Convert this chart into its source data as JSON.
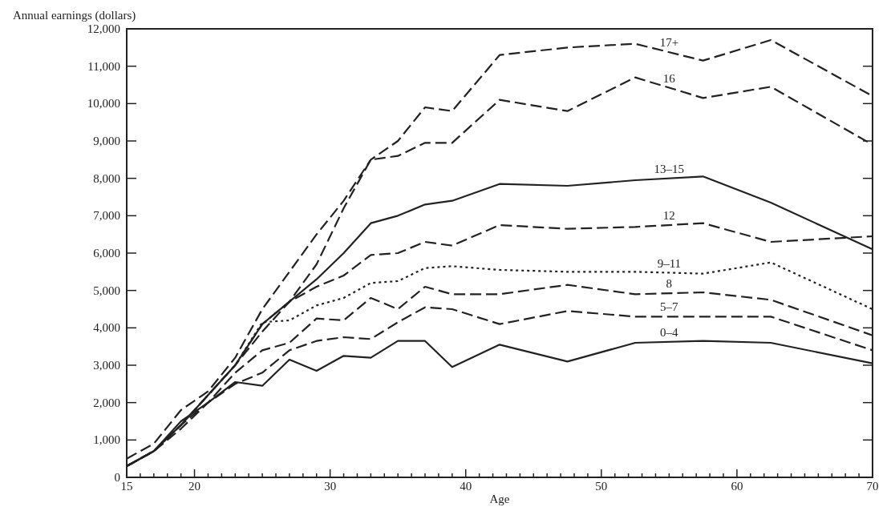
{
  "chart_data": {
    "type": "line",
    "ylabel": "Annual earnings (dollars)",
    "xlabel": "Age",
    "x": [
      15,
      17,
      19,
      21,
      23,
      25,
      27,
      29,
      31,
      33,
      35,
      37,
      39,
      42.5,
      47.5,
      52.5,
      57.5,
      62.5,
      70
    ],
    "xlim": [
      15,
      70
    ],
    "ylim": [
      0,
      12000
    ],
    "xticks": [
      15,
      {
        "value": 16,
        "label": null
      },
      {
        "value": 17,
        "label": null
      },
      {
        "value": 18,
        "label": null
      },
      {
        "value": 19,
        "label": null
      },
      20,
      {
        "value": 21,
        "label": null
      },
      {
        "value": 22,
        "label": null
      },
      {
        "value": 23,
        "label": null
      },
      {
        "value": 24,
        "label": null
      },
      {
        "value": 25,
        "label": null
      },
      {
        "value": 26,
        "label": null
      },
      {
        "value": 27,
        "label": null
      },
      {
        "value": 28,
        "label": null
      },
      {
        "value": 29,
        "label": null
      },
      30,
      {
        "value": 31,
        "label": null
      },
      {
        "value": 32,
        "label": null
      },
      {
        "value": 33,
        "label": null
      },
      {
        "value": 34,
        "label": null
      },
      {
        "value": 35,
        "label": null
      },
      {
        "value": 36,
        "label": null
      },
      {
        "value": 37,
        "label": null
      },
      {
        "value": 38,
        "label": null
      },
      {
        "value": 39,
        "label": null
      },
      40,
      {
        "value": 41,
        "label": null
      },
      {
        "value": 42,
        "label": null
      },
      {
        "value": 43,
        "label": null
      },
      {
        "value": 44,
        "label": null
      },
      {
        "value": 45,
        "label": null
      },
      {
        "value": 46,
        "label": null
      },
      {
        "value": 47,
        "label": null
      },
      {
        "value": 48,
        "label": null
      },
      {
        "value": 49,
        "label": null
      },
      50,
      {
        "value": 51,
        "label": null
      },
      {
        "value": 52,
        "label": null
      },
      {
        "value": 53,
        "label": null
      },
      {
        "value": 54,
        "label": null
      },
      {
        "value": 55,
        "label": null
      },
      {
        "value": 56,
        "label": null
      },
      {
        "value": 57,
        "label": null
      },
      {
        "value": 58,
        "label": null
      },
      {
        "value": 59,
        "label": null
      },
      60,
      {
        "value": 61,
        "label": null
      },
      {
        "value": 62,
        "label": null
      },
      {
        "value": 63,
        "label": null
      },
      {
        "value": 64,
        "label": null
      },
      {
        "value": 65,
        "label": null
      },
      {
        "value": 66,
        "label": null
      },
      {
        "value": 67,
        "label": null
      },
      {
        "value": 68,
        "label": null
      },
      {
        "value": 69,
        "label": null
      },
      70
    ],
    "yticks": [
      0,
      {
        "value": 1000,
        "label": "1,000"
      },
      {
        "value": 2000,
        "label": "2,000"
      },
      {
        "value": 3000,
        "label": "3,000"
      },
      {
        "value": 4000,
        "label": "4,000"
      },
      {
        "value": 5000,
        "label": "5,000"
      },
      {
        "value": 6000,
        "label": "6,000"
      },
      {
        "value": 7000,
        "label": "7,000"
      },
      {
        "value": 8000,
        "label": "8,000"
      },
      {
        "value": 9000,
        "label": "9,000"
      },
      {
        "value": 10000,
        "label": "10,000"
      },
      {
        "value": 11000,
        "label": "11,000"
      },
      {
        "value": 12000,
        "label": "12,000"
      }
    ],
    "grid": false,
    "marker": "none",
    "series": [
      {
        "name": "17+",
        "color": "#222222",
        "line_style": "dashed",
        "values": [
          500,
          900,
          1800,
          2300,
          3200,
          4500,
          5500,
          6500,
          7400,
          8500,
          9000,
          9900,
          9800,
          11300,
          11500,
          11600,
          11150,
          11700,
          10200
        ]
      },
      {
        "name": "16",
        "color": "#222222",
        "line_style": "dashed",
        "values": [
          300,
          700,
          1400,
          2200,
          3000,
          3900,
          4700,
          5700,
          7200,
          8500,
          8600,
          8950,
          8950,
          10100,
          9800,
          10700,
          10150,
          10450,
          8900
        ]
      },
      {
        "name": "13–15",
        "color": "#222222",
        "line_style": "solid",
        "values": [
          300,
          700,
          1400,
          2200,
          3000,
          4100,
          4700,
          5300,
          6000,
          6800,
          7000,
          7300,
          7400,
          7850,
          7800,
          7950,
          8050,
          7350,
          6100
        ]
      },
      {
        "name": "12",
        "color": "#222222",
        "line_style": "dashed",
        "values": [
          300,
          700,
          1400,
          2200,
          3000,
          4100,
          4700,
          5100,
          5400,
          5950,
          6000,
          6300,
          6200,
          6750,
          6650,
          6700,
          6800,
          6300,
          6450
        ]
      },
      {
        "name": "9–11",
        "color": "#222222",
        "line_style": "dotted",
        "values": [
          300,
          700,
          1400,
          2200,
          3000,
          4150,
          4200,
          4600,
          4800,
          5200,
          5250,
          5600,
          5650,
          5550,
          5500,
          5500,
          5450,
          5750,
          4500
        ]
      },
      {
        "name": "8",
        "color": "#222222",
        "line_style": "dashed",
        "values": [
          300,
          700,
          1400,
          2000,
          2800,
          3400,
          3600,
          4250,
          4200,
          4800,
          4500,
          5100,
          4900,
          4900,
          5150,
          4900,
          4950,
          4750,
          3800
        ]
      },
      {
        "name": "5–7",
        "color": "#222222",
        "line_style": "dashed",
        "values": [
          300,
          700,
          1300,
          2000,
          2500,
          2800,
          3400,
          3650,
          3750,
          3700,
          4150,
          4550,
          4500,
          4100,
          4450,
          4300,
          4300,
          4300,
          3400
        ]
      },
      {
        "name": "0–4",
        "color": "#222222",
        "line_style": "solid",
        "values": [
          300,
          700,
          1500,
          2000,
          2550,
          2450,
          3150,
          2850,
          3250,
          3200,
          3650,
          3650,
          2950,
          3550,
          3100,
          3600,
          3650,
          3600,
          3050
        ]
      }
    ]
  }
}
